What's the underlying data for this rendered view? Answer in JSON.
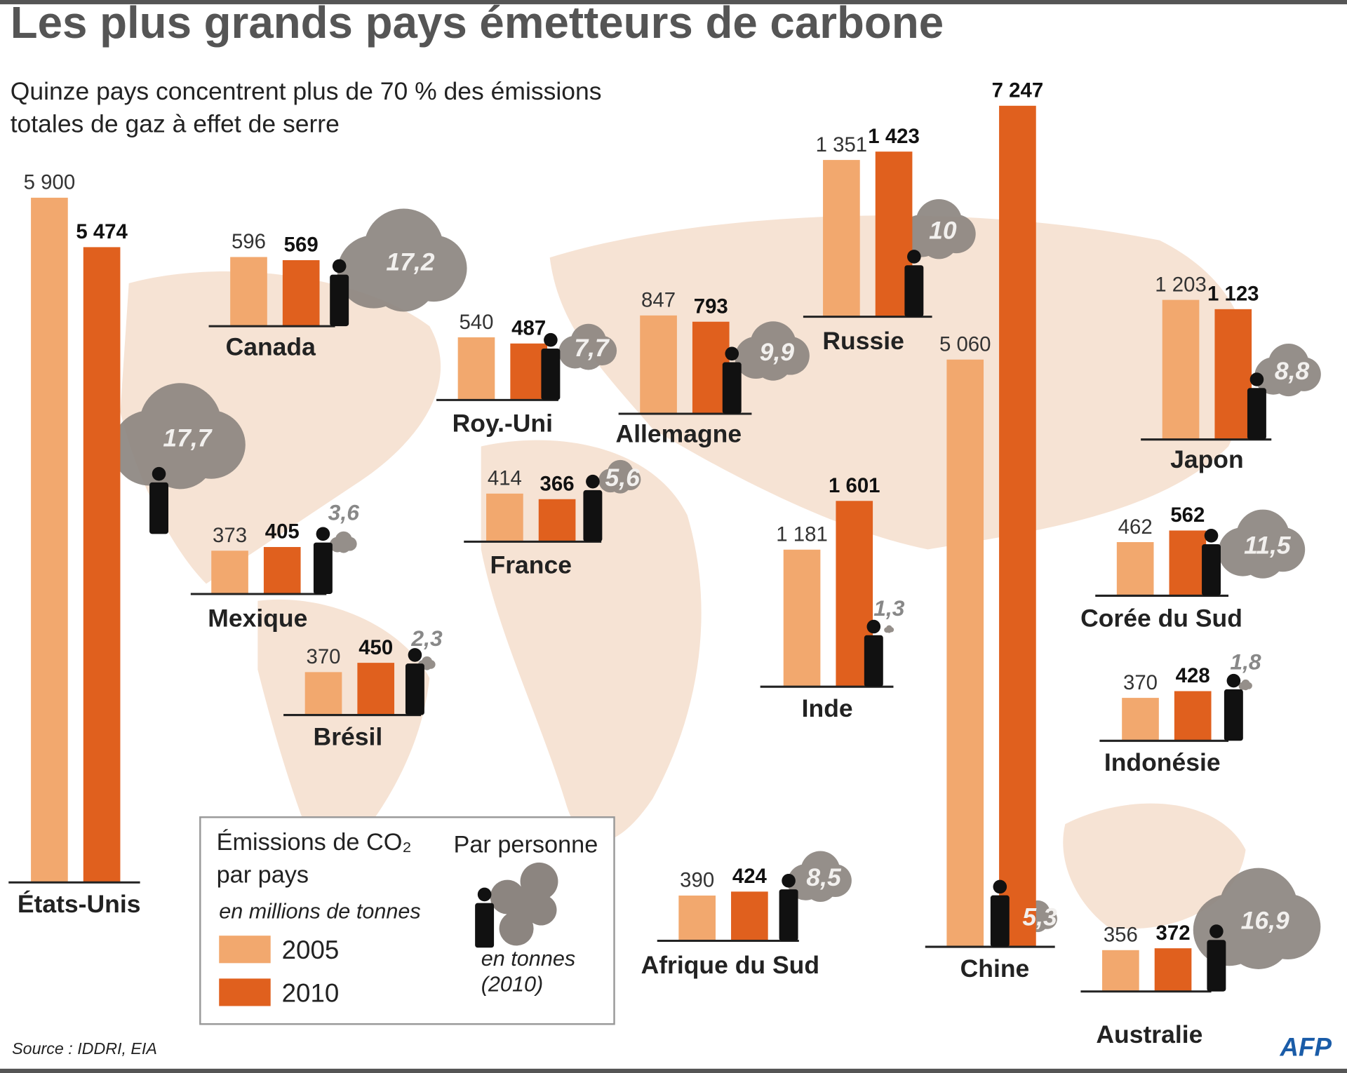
{
  "chart_data": {
    "type": "bar",
    "title": "Les plus grands pays émetteurs de carbone",
    "subtitle": "Quinze pays concentrent plus de 70 % des émissions totales de gaz à effet de serre",
    "categories": [
      "États-Unis",
      "Canada",
      "Mexique",
      "Brésil",
      "Roy.-Uni",
      "France",
      "Allemagne",
      "Afrique du Sud",
      "Russie",
      "Inde",
      "Chine",
      "Japon",
      "Corée du Sud",
      "Indonésie",
      "Australie"
    ],
    "series": [
      {
        "name": "2005",
        "color": "#f2a86e",
        "values": [
          5900,
          596,
          373,
          370,
          540,
          414,
          847,
          390,
          1351,
          1181,
          5060,
          1203,
          462,
          370,
          356
        ],
        "value_labels": [
          "5 900",
          "596",
          "373",
          "370",
          "540",
          "414",
          "847",
          "390",
          "1 351",
          "1 181",
          "5 060",
          "1 203",
          "462",
          "370",
          "356"
        ]
      },
      {
        "name": "2010",
        "color": "#e0601e",
        "values": [
          5474,
          569,
          405,
          450,
          487,
          366,
          793,
          424,
          1423,
          1601,
          7247,
          1123,
          562,
          428,
          372
        ],
        "value_labels": [
          "5 474",
          "569",
          "405",
          "450",
          "487",
          "366",
          "793",
          "424",
          "1 423",
          "1 601",
          "7 247",
          "1 123",
          "562",
          "428",
          "372"
        ]
      }
    ],
    "per_person": {
      "name": "Par personne",
      "unit": "en tonnes (2010)",
      "color": "#8c8580",
      "values": [
        17.7,
        17.2,
        3.6,
        2.3,
        7.7,
        5.6,
        9.9,
        8.5,
        10,
        1.3,
        5.3,
        8.8,
        11.5,
        1.8,
        16.9
      ],
      "value_labels": [
        "17,7",
        "17,2",
        "3,6",
        "2,3",
        "7,7",
        "5,6",
        "9,9",
        "8,5",
        "10",
        "1,3",
        "5,3",
        "8,8",
        "11,5",
        "1,8",
        "16,9"
      ]
    },
    "legend": {
      "title": "Émissions de CO₂ par pays",
      "unit": "en millions de tonnes"
    },
    "source": "Source : IDDRI, EIA",
    "credit": "AFP"
  }
}
